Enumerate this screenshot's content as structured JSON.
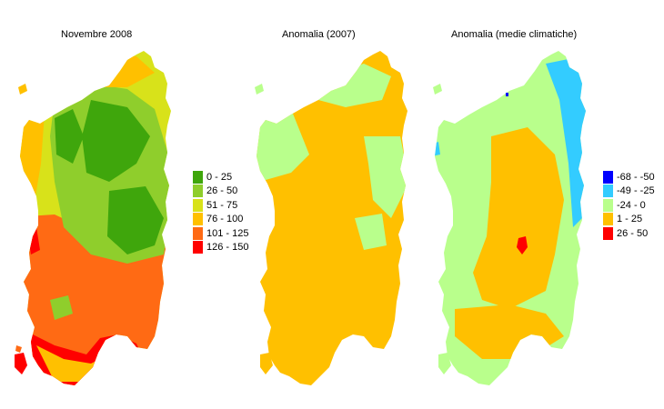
{
  "maps": [
    {
      "title": "Novembre 2008",
      "legend": [
        {
          "label": "0 - 25",
          "color": "#3fa60c"
        },
        {
          "label": "26 - 50",
          "color": "#8fce2c"
        },
        {
          "label": "51 - 75",
          "color": "#d8e21a"
        },
        {
          "label": "76 - 100",
          "color": "#ffc000"
        },
        {
          "label": "101 - 125",
          "color": "#ff6a14"
        },
        {
          "label": "126 - 150",
          "color": "#ff0000"
        }
      ]
    },
    {
      "title": "Anomalia (2007)"
    },
    {
      "title": "Anomalia (medie climatiche)",
      "legend": [
        {
          "label": "-68 - -50",
          "color": "#0000ff"
        },
        {
          "label": "-49 - -25",
          "color": "#33ccff"
        },
        {
          "label": "-24 - 0",
          "color": "#b9ff8c"
        },
        {
          "label": "1 - 25",
          "color": "#ffc000"
        },
        {
          "label": "26 - 50",
          "color": "#ff0000"
        }
      ]
    }
  ]
}
